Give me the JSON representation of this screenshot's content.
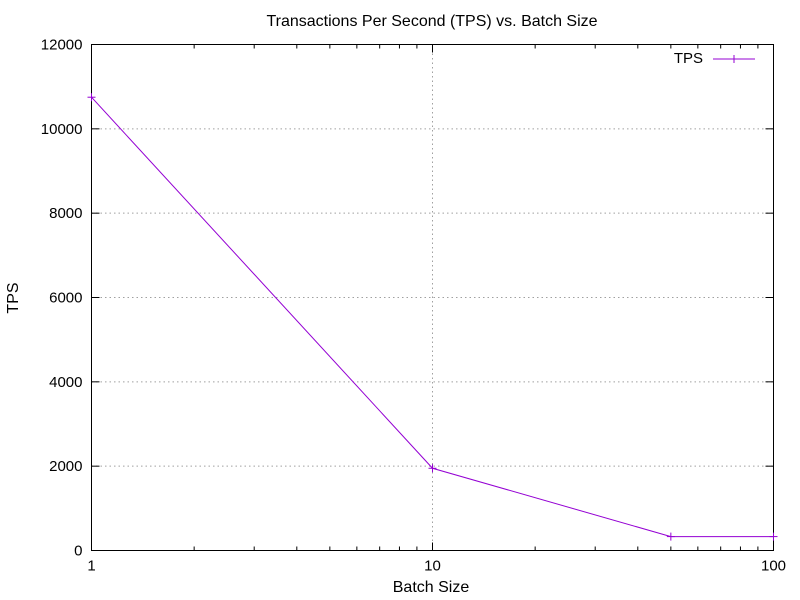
{
  "chart_data": {
    "type": "line",
    "title": "Transactions Per Second (TPS) vs. Batch Size",
    "xlabel": "Batch Size",
    "ylabel": "TPS",
    "x_scale": "log",
    "xlim": [
      1,
      100
    ],
    "ylim": [
      0,
      12000
    ],
    "x_ticks": [
      1,
      10,
      100
    ],
    "y_ticks": [
      0,
      2000,
      4000,
      6000,
      8000,
      10000,
      12000
    ],
    "x_minor_ticks": [
      2,
      3,
      4,
      5,
      6,
      7,
      8,
      9,
      20,
      30,
      40,
      50,
      60,
      70,
      80,
      90
    ],
    "grid": true,
    "legend_position": "top-right",
    "series": [
      {
        "name": "TPS",
        "color": "#9400d3",
        "marker": "plus",
        "x": [
          1,
          10,
          50,
          100
        ],
        "y": [
          10750,
          1950,
          330,
          330
        ]
      }
    ]
  }
}
